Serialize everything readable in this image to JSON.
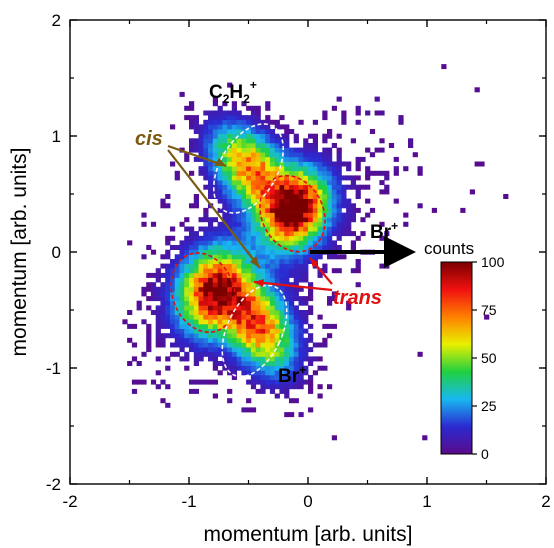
{
  "chart_data": {
    "type": "heatmap",
    "xlabel": "momentum [arb. units]",
    "ylabel": "momentum [arb. units]",
    "xlim": [
      -2,
      2
    ],
    "ylim": [
      -2,
      2
    ],
    "x_ticks": [
      -2,
      -1,
      0,
      1,
      2
    ],
    "y_ticks": [
      -2,
      -1,
      0,
      1,
      2
    ],
    "grid": false,
    "colormap": [
      "#5b0a8a",
      "#2a2ad0",
      "#18b8f0",
      "#20d040",
      "#e8f000",
      "#ff8000",
      "#f01010",
      "#7a0000"
    ],
    "colorbar": {
      "label": "counts",
      "min": 0,
      "max": 100,
      "ticks": [
        0,
        25,
        50,
        75,
        100
      ]
    },
    "clusters": [
      {
        "cx": -0.5,
        "cy": 0.7,
        "sx": 0.17,
        "sy": 0.28,
        "tilt_deg": 40,
        "peak": 72
      },
      {
        "cx": -0.13,
        "cy": 0.35,
        "sx": 0.17,
        "sy": 0.22,
        "tilt_deg": -25,
        "peak": 98
      },
      {
        "cx": -0.82,
        "cy": -0.36,
        "sx": 0.19,
        "sy": 0.24,
        "tilt_deg": -20,
        "peak": 85
      },
      {
        "cx": -0.44,
        "cy": -0.66,
        "sx": 0.17,
        "sy": 0.28,
        "tilt_deg": 30,
        "peak": 75
      }
    ],
    "rings": [
      {
        "cx": -0.5,
        "cy": 0.72,
        "rx": 0.24,
        "ry": 0.42,
        "tilt_deg": 30,
        "color": "#f5f5f5"
      },
      {
        "cx": -0.13,
        "cy": 0.33,
        "rx": 0.26,
        "ry": 0.34,
        "tilt_deg": -25,
        "color": "#e01010"
      },
      {
        "cx": -0.88,
        "cy": -0.35,
        "rx": 0.26,
        "ry": 0.35,
        "tilt_deg": -20,
        "color": "#e01010"
      },
      {
        "cx": -0.45,
        "cy": -0.68,
        "rx": 0.23,
        "ry": 0.42,
        "tilt_deg": 25,
        "color": "#f5f5f5"
      }
    ],
    "annotations": {
      "c2h2": {
        "main": "C",
        "sub1": "2",
        "mid": "H",
        "sub2": "2",
        "sup": "+"
      },
      "br_bottom": {
        "main": "Br",
        "sup": "+"
      },
      "br_arrow": {
        "main": "Br",
        "sup": "+"
      },
      "cis": "cis",
      "trans": "trans"
    },
    "colors": {
      "cis": "#7a5a10",
      "trans": "#e01010",
      "arrow": "#000000",
      "axis": "#000000"
    }
  }
}
